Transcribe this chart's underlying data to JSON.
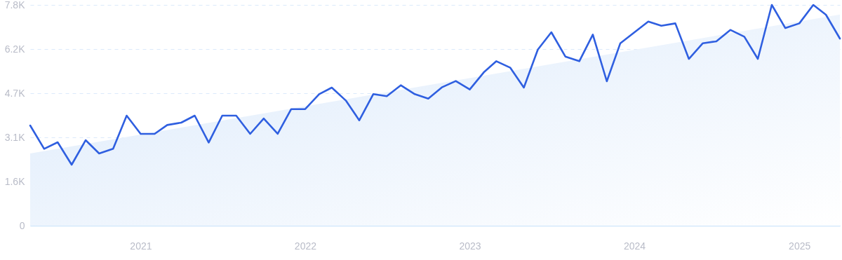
{
  "chart_data": {
    "type": "line",
    "x": [
      "2020-05",
      "2020-06",
      "2020-07",
      "2020-08",
      "2020-09",
      "2020-10",
      "2020-11",
      "2020-12",
      "2021-01",
      "2021-02",
      "2021-03",
      "2021-04",
      "2021-05",
      "2021-06",
      "2021-07",
      "2021-08",
      "2021-09",
      "2021-10",
      "2021-11",
      "2021-12",
      "2022-01",
      "2022-02",
      "2022-03",
      "2022-04",
      "2022-05",
      "2022-06",
      "2022-07",
      "2022-08",
      "2022-09",
      "2022-10",
      "2022-11",
      "2022-12",
      "2023-01",
      "2023-02",
      "2023-03",
      "2023-04",
      "2023-05",
      "2023-06",
      "2023-07",
      "2023-08",
      "2023-09",
      "2023-10",
      "2023-11",
      "2023-12",
      "2024-01",
      "2024-02",
      "2024-03",
      "2024-04",
      "2024-05",
      "2024-06",
      "2024-07",
      "2024-08",
      "2024-09",
      "2024-10",
      "2024-11",
      "2024-12",
      "2025-01",
      "2025-02",
      "2025-03",
      "2025-04"
    ],
    "series": [
      {
        "type": "area",
        "color": "#dceafb",
        "x": [
          "2020-05",
          "2025-04"
        ],
        "values": [
          2550,
          7460
        ]
      },
      {
        "color": "#2f5fe0",
        "values": [
          3540,
          2715,
          2946,
          2154,
          3020,
          2550,
          2715,
          3887,
          3244,
          3244,
          3557,
          3640,
          3887,
          2938,
          3887,
          3887,
          3244,
          3788,
          3244,
          4118,
          4118,
          4647,
          4878,
          4424,
          3722,
          4647,
          4573,
          4960,
          4647,
          4490,
          4895,
          5109,
          4812,
          5415,
          5811,
          5580,
          4878,
          6223,
          6834,
          5976,
          5811,
          6752,
          5101,
          6446,
          6830,
          7213,
          7064,
          7147,
          5893,
          6446,
          6512,
          6916,
          6677,
          5893,
          7800,
          6982,
          7147,
          7800,
          7453,
          6611
        ]
      }
    ],
    "xlim": [
      "2020-05",
      "2025-04"
    ],
    "xticks": [
      {
        "value": "2021",
        "label": "2021"
      },
      {
        "value": "2022",
        "label": "2022"
      },
      {
        "value": "2023",
        "label": "2023"
      },
      {
        "value": "2024",
        "label": "2024"
      },
      {
        "value": "2025",
        "label": "2025"
      }
    ],
    "ylim": [
      0,
      7800
    ],
    "yticks": [
      {
        "value": 0,
        "label": "0"
      },
      {
        "value": 1560,
        "label": "1.6K"
      },
      {
        "value": 3120,
        "label": "3.1K"
      },
      {
        "value": 4680,
        "label": "4.7K"
      },
      {
        "value": 6240,
        "label": "6.2K"
      },
      {
        "value": 7800,
        "label": "7.8K"
      }
    ],
    "grid": "y",
    "marker": "none",
    "line_style": "solid"
  }
}
